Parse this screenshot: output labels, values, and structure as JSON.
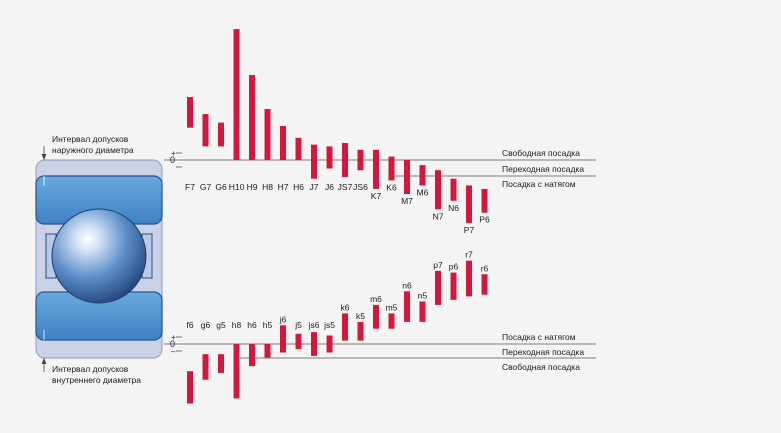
{
  "colors": {
    "background": "#f4f4f4",
    "bar": "#d3173d",
    "bearing_blue": "#5f9fd6",
    "bearing_dark": "#1f4f86",
    "bearing_light": "#c8d3e6",
    "text": "#1a1a1a"
  },
  "labels": {
    "outer_interval_line1": "Интервал допусков",
    "outer_interval_line2": "наружного диаметра",
    "inner_interval_line1": "Интервал допусков",
    "inner_interval_line2": "внутреннего диаметра",
    "plus": "+",
    "zero": "0",
    "minus": "–"
  },
  "housing_fits": {
    "zone_labels": [
      "Свободная посадка",
      "Переходная посадка",
      "Посадка с натягом"
    ],
    "bars": [
      {
        "name": "F7",
        "upper": 1.85,
        "lower": 0.95
      },
      {
        "name": "G7",
        "upper": 1.35,
        "lower": 0.4
      },
      {
        "name": "G6",
        "upper": 1.1,
        "lower": 0.4
      },
      {
        "name": "H10",
        "upper": 3.85,
        "lower": 0.0
      },
      {
        "name": "H9",
        "upper": 2.5,
        "lower": 0.0
      },
      {
        "name": "H8",
        "upper": 1.5,
        "lower": 0.0
      },
      {
        "name": "H7",
        "upper": 1.0,
        "lower": 0.0
      },
      {
        "name": "H6",
        "upper": 0.65,
        "lower": 0.0
      },
      {
        "name": "J7",
        "upper": 0.45,
        "lower": -0.55
      },
      {
        "name": "J6",
        "upper": 0.4,
        "lower": -0.25
      },
      {
        "name": "JS7",
        "upper": 0.5,
        "lower": -0.5
      },
      {
        "name": "JS6",
        "upper": 0.3,
        "lower": -0.3
      },
      {
        "name": "K7",
        "upper": 0.3,
        "lower": -0.85
      },
      {
        "name": "K6",
        "upper": 0.1,
        "lower": -0.6
      },
      {
        "name": "M7",
        "upper": 0.0,
        "lower": -1.0
      },
      {
        "name": "M6",
        "upper": -0.15,
        "lower": -0.75
      },
      {
        "name": "N7",
        "upper": -0.3,
        "lower": -1.45
      },
      {
        "name": "N6",
        "upper": -0.55,
        "lower": -1.2
      },
      {
        "name": "P7",
        "upper": -0.75,
        "lower": -1.85
      },
      {
        "name": "P6",
        "upper": -0.85,
        "lower": -1.55
      }
    ]
  },
  "shaft_fits": {
    "zone_labels": [
      "Посадка с натягом",
      "Переходная посадка",
      "Свободная посадка"
    ],
    "bars": [
      {
        "name": "f6",
        "upper": -0.8,
        "lower": -1.75
      },
      {
        "name": "g6",
        "upper": -0.3,
        "lower": -1.05
      },
      {
        "name": "g5",
        "upper": -0.3,
        "lower": -0.85
      },
      {
        "name": "h8",
        "upper": 0.0,
        "lower": -1.6
      },
      {
        "name": "h6",
        "upper": 0.0,
        "lower": -0.65
      },
      {
        "name": "h5",
        "upper": 0.0,
        "lower": -0.4
      },
      {
        "name": "j6",
        "upper": 0.55,
        "lower": -0.25
      },
      {
        "name": "j5",
        "upper": 0.3,
        "lower": -0.15
      },
      {
        "name": "js6",
        "upper": 0.35,
        "lower": -0.35
      },
      {
        "name": "js5",
        "upper": 0.25,
        "lower": -0.25
      },
      {
        "name": "k6",
        "upper": 0.9,
        "lower": 0.1
      },
      {
        "name": "k5",
        "upper": 0.65,
        "lower": 0.1
      },
      {
        "name": "m6",
        "upper": 1.15,
        "lower": 0.45
      },
      {
        "name": "m5",
        "upper": 0.9,
        "lower": 0.45
      },
      {
        "name": "n6",
        "upper": 1.55,
        "lower": 0.65
      },
      {
        "name": "n5",
        "upper": 1.25,
        "lower": 0.65
      },
      {
        "name": "p7",
        "upper": 2.15,
        "lower": 1.15
      },
      {
        "name": "p6",
        "upper": 2.1,
        "lower": 1.3
      },
      {
        "name": "r7",
        "upper": 2.45,
        "lower": 1.4
      },
      {
        "name": "r6",
        "upper": 2.05,
        "lower": 1.45
      }
    ]
  }
}
